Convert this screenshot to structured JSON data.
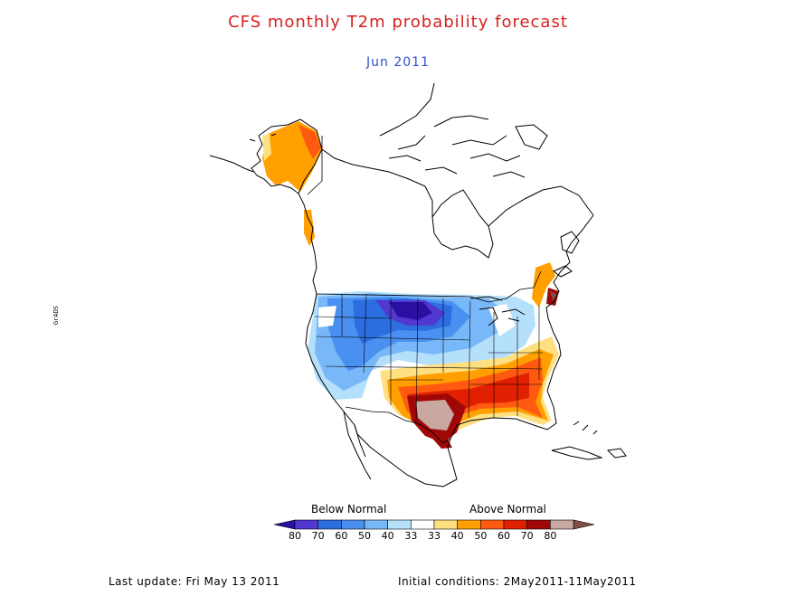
{
  "title": "CFS monthly T2m probability forecast",
  "subtitle": "Jun 2011",
  "legend": {
    "below_label": "Below Normal",
    "above_label": "Above Normal",
    "ticks": [
      "80",
      "70",
      "60",
      "50",
      "40",
      "33",
      "33",
      "40",
      "50",
      "60",
      "70",
      "80"
    ],
    "colors": [
      "#2a0fa0",
      "#5038d0",
      "#2c6ee0",
      "#4a90f0",
      "#78b8f8",
      "#b4e0fc",
      "#ffffff",
      "#ffe080",
      "#ffa000",
      "#ff5a10",
      "#e02000",
      "#a00808",
      "#c8a8a0",
      "#805048"
    ]
  },
  "footer": {
    "last_update": "Last update: Fri May 13 2011",
    "initial_conditions": "Initial conditions: 2May2011-11May2011"
  },
  "side_note": "GrADS"
}
